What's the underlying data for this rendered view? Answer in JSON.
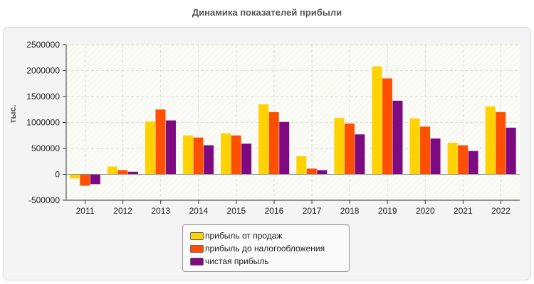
{
  "chart_data": {
    "type": "bar",
    "title": "Динамика показателей прибыли",
    "ylabel": "тыс.",
    "xlabel": "",
    "categories": [
      "2011",
      "2012",
      "2013",
      "2014",
      "2015",
      "2016",
      "2017",
      "2018",
      "2019",
      "2020",
      "2021",
      "2022"
    ],
    "ylim": [
      -500000,
      2500000
    ],
    "yticks": [
      "-500000",
      "0",
      "500000",
      "1000000",
      "1500000",
      "2000000",
      "2500000"
    ],
    "grid": true,
    "legend_position": "bottom",
    "series": [
      {
        "name": "прибыль от продаж",
        "color": "#ffd200",
        "values": [
          -80000,
          150000,
          1020000,
          750000,
          790000,
          1350000,
          350000,
          1090000,
          2080000,
          1080000,
          610000,
          1310000
        ]
      },
      {
        "name": "прибыль до налогообложения",
        "color": "#ff4f00",
        "values": [
          -220000,
          80000,
          1250000,
          710000,
          750000,
          1200000,
          110000,
          980000,
          1850000,
          920000,
          560000,
          1200000
        ]
      },
      {
        "name": "чистая прибыль",
        "color": "#7e0a82",
        "values": [
          -190000,
          50000,
          1040000,
          560000,
          590000,
          1010000,
          80000,
          770000,
          1420000,
          690000,
          450000,
          900000
        ]
      }
    ]
  }
}
